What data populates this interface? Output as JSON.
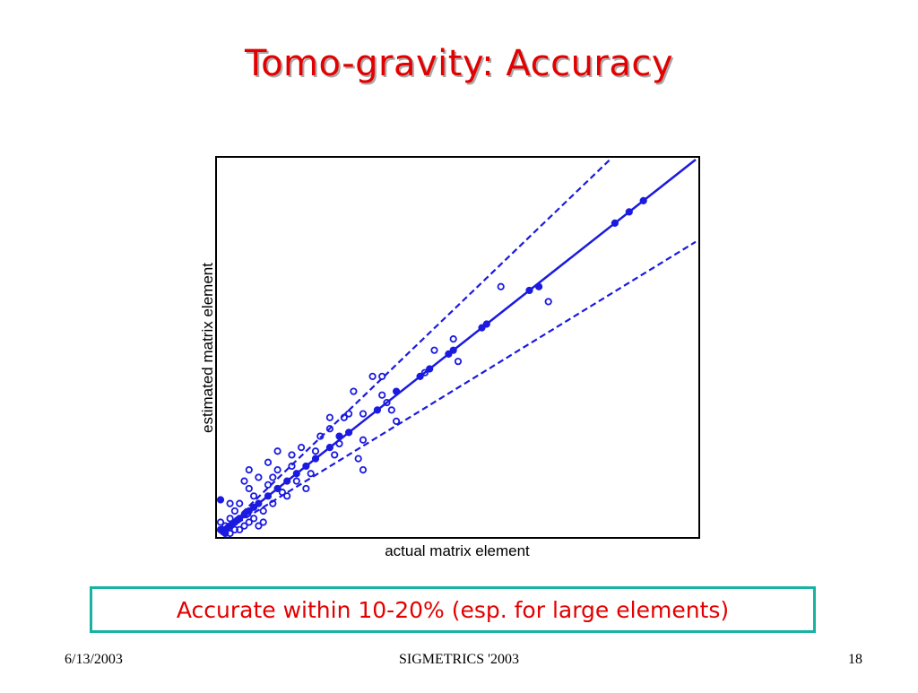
{
  "slide": {
    "title": "Tomo-gravity: Accuracy",
    "callout": "Accurate within 10-20% (esp. for large elements)",
    "footer": {
      "date": "6/13/2003",
      "conference": "SIGMETRICS '2003",
      "page": "18"
    }
  },
  "colors": {
    "title": "#e30000",
    "series": "#1a1ae0",
    "callout_border": "#17b3a1"
  },
  "chart_data": {
    "type": "scatter",
    "xlabel": "actual matrix element",
    "ylabel": "estimated matrix element",
    "xlim": [
      0,
      1
    ],
    "ylim": [
      0,
      1
    ],
    "ticks": false,
    "grid": false,
    "reference_lines": [
      {
        "kind": "solid",
        "slope": 1.0
      },
      {
        "kind": "dashed",
        "slope": 1.22
      },
      {
        "kind": "dashed",
        "slope": 0.78
      }
    ],
    "series": [
      {
        "marker": "filled",
        "points": [
          [
            0.89,
            0.89
          ],
          [
            0.86,
            0.86
          ],
          [
            0.83,
            0.83
          ],
          [
            0.67,
            0.66
          ],
          [
            0.65,
            0.65
          ],
          [
            0.56,
            0.56
          ],
          [
            0.55,
            0.55
          ],
          [
            0.49,
            0.49
          ],
          [
            0.48,
            0.48
          ],
          [
            0.44,
            0.44
          ],
          [
            0.42,
            0.42
          ],
          [
            0.37,
            0.38
          ],
          [
            0.33,
            0.33
          ],
          [
            0.27,
            0.27
          ],
          [
            0.25,
            0.26
          ],
          [
            0.23,
            0.23
          ],
          [
            0.2,
            0.2
          ],
          [
            0.18,
            0.18
          ],
          [
            0.16,
            0.16
          ],
          [
            0.14,
            0.14
          ],
          [
            0.12,
            0.12
          ],
          [
            0.1,
            0.1
          ],
          [
            0.08,
            0.08
          ],
          [
            0.07,
            0.07
          ],
          [
            0.06,
            0.06
          ],
          [
            0.05,
            0.05
          ],
          [
            0.04,
            0.04
          ],
          [
            0.035,
            0.035
          ],
          [
            0.03,
            0.03
          ],
          [
            0.025,
            0.025
          ],
          [
            0.02,
            0.02
          ],
          [
            0.015,
            0.015
          ],
          [
            0.01,
            0.01
          ],
          [
            0.005,
            0.005
          ],
          [
            0.0,
            0.09
          ],
          [
            0.0,
            0.01
          ],
          [
            0.01,
            0.0
          ]
        ]
      },
      {
        "marker": "open",
        "points": [
          [
            0.59,
            0.66
          ],
          [
            0.69,
            0.62
          ],
          [
            0.5,
            0.46
          ],
          [
            0.49,
            0.52
          ],
          [
            0.45,
            0.49
          ],
          [
            0.43,
            0.43
          ],
          [
            0.34,
            0.42
          ],
          [
            0.32,
            0.42
          ],
          [
            0.28,
            0.38
          ],
          [
            0.27,
            0.32
          ],
          [
            0.3,
            0.32
          ],
          [
            0.26,
            0.31
          ],
          [
            0.37,
            0.3
          ],
          [
            0.36,
            0.33
          ],
          [
            0.35,
            0.35
          ],
          [
            0.34,
            0.37
          ],
          [
            0.23,
            0.31
          ],
          [
            0.23,
            0.28
          ],
          [
            0.21,
            0.26
          ],
          [
            0.25,
            0.24
          ],
          [
            0.24,
            0.21
          ],
          [
            0.3,
            0.25
          ],
          [
            0.29,
            0.2
          ],
          [
            0.3,
            0.17
          ],
          [
            0.2,
            0.22
          ],
          [
            0.17,
            0.23
          ],
          [
            0.15,
            0.21
          ],
          [
            0.12,
            0.22
          ],
          [
            0.15,
            0.18
          ],
          [
            0.11,
            0.15
          ],
          [
            0.1,
            0.19
          ],
          [
            0.08,
            0.15
          ],
          [
            0.06,
            0.17
          ],
          [
            0.06,
            0.12
          ],
          [
            0.05,
            0.14
          ],
          [
            0.04,
            0.08
          ],
          [
            0.13,
            0.11
          ],
          [
            0.16,
            0.14
          ],
          [
            0.18,
            0.12
          ],
          [
            0.09,
            0.06
          ],
          [
            0.08,
            0.02
          ],
          [
            0.05,
            0.02
          ],
          [
            0.03,
            0.06
          ],
          [
            0.02,
            0.08
          ],
          [
            0.07,
            0.1
          ],
          [
            0.11,
            0.08
          ],
          [
            0.03,
            0.03
          ],
          [
            0.02,
            0.04
          ],
          [
            0.04,
            0.01
          ],
          [
            0.06,
            0.03
          ],
          [
            0.1,
            0.13
          ],
          [
            0.14,
            0.1
          ],
          [
            0.19,
            0.16
          ],
          [
            0.12,
            0.17
          ],
          [
            0.09,
            0.03
          ],
          [
            0.02,
            0.0
          ],
          [
            0.0,
            0.03
          ],
          [
            0.03,
            0.01
          ],
          [
            0.01,
            0.02
          ],
          [
            0.07,
            0.04
          ]
        ]
      }
    ]
  }
}
